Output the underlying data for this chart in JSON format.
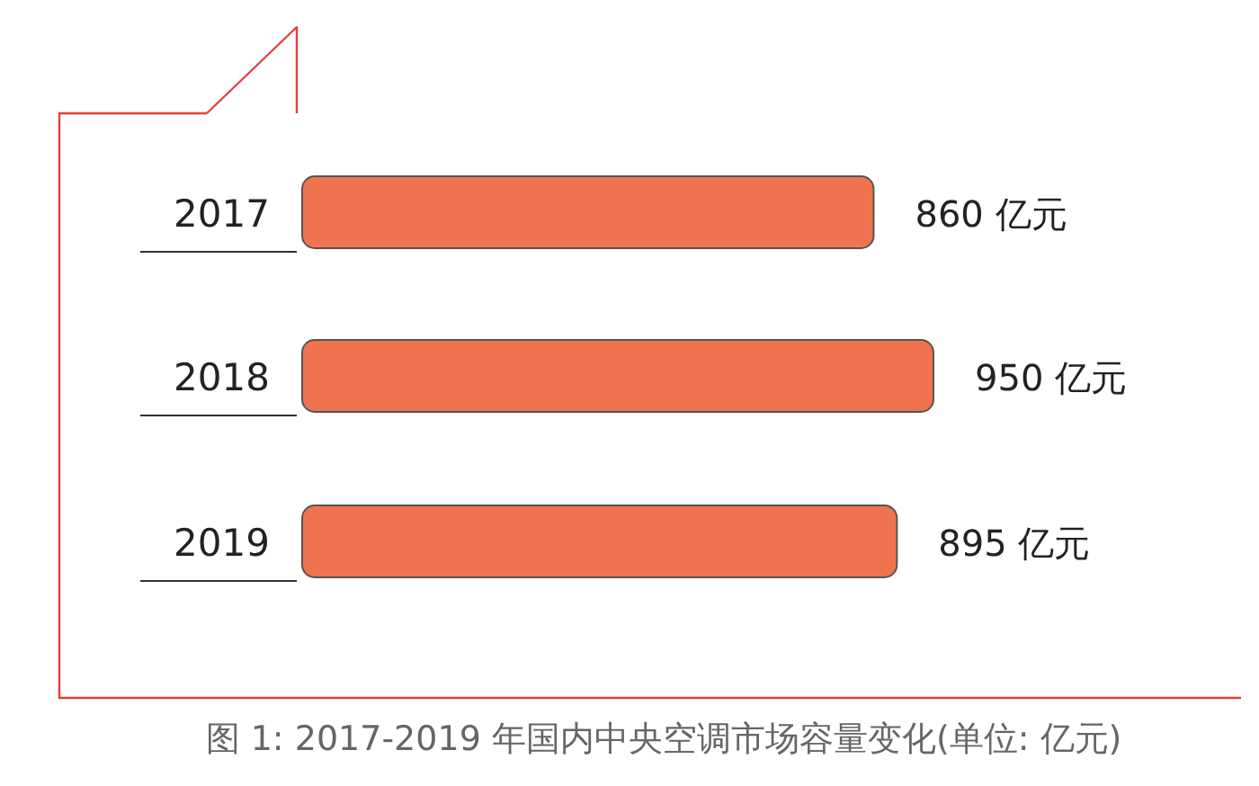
{
  "chart_data": {
    "type": "bar",
    "orientation": "horizontal",
    "categories": [
      "2017",
      "2018",
      "2019"
    ],
    "values": [
      860,
      950,
      895
    ],
    "value_labels": [
      "860 亿元",
      "950 亿元",
      "895 亿元"
    ],
    "color": "#f07350",
    "tick_labels": "y",
    "annotations": [
      "图 1: 2017-2019 年国内中央空调市场容量变化(单位: 亿元)"
    ]
  }
}
